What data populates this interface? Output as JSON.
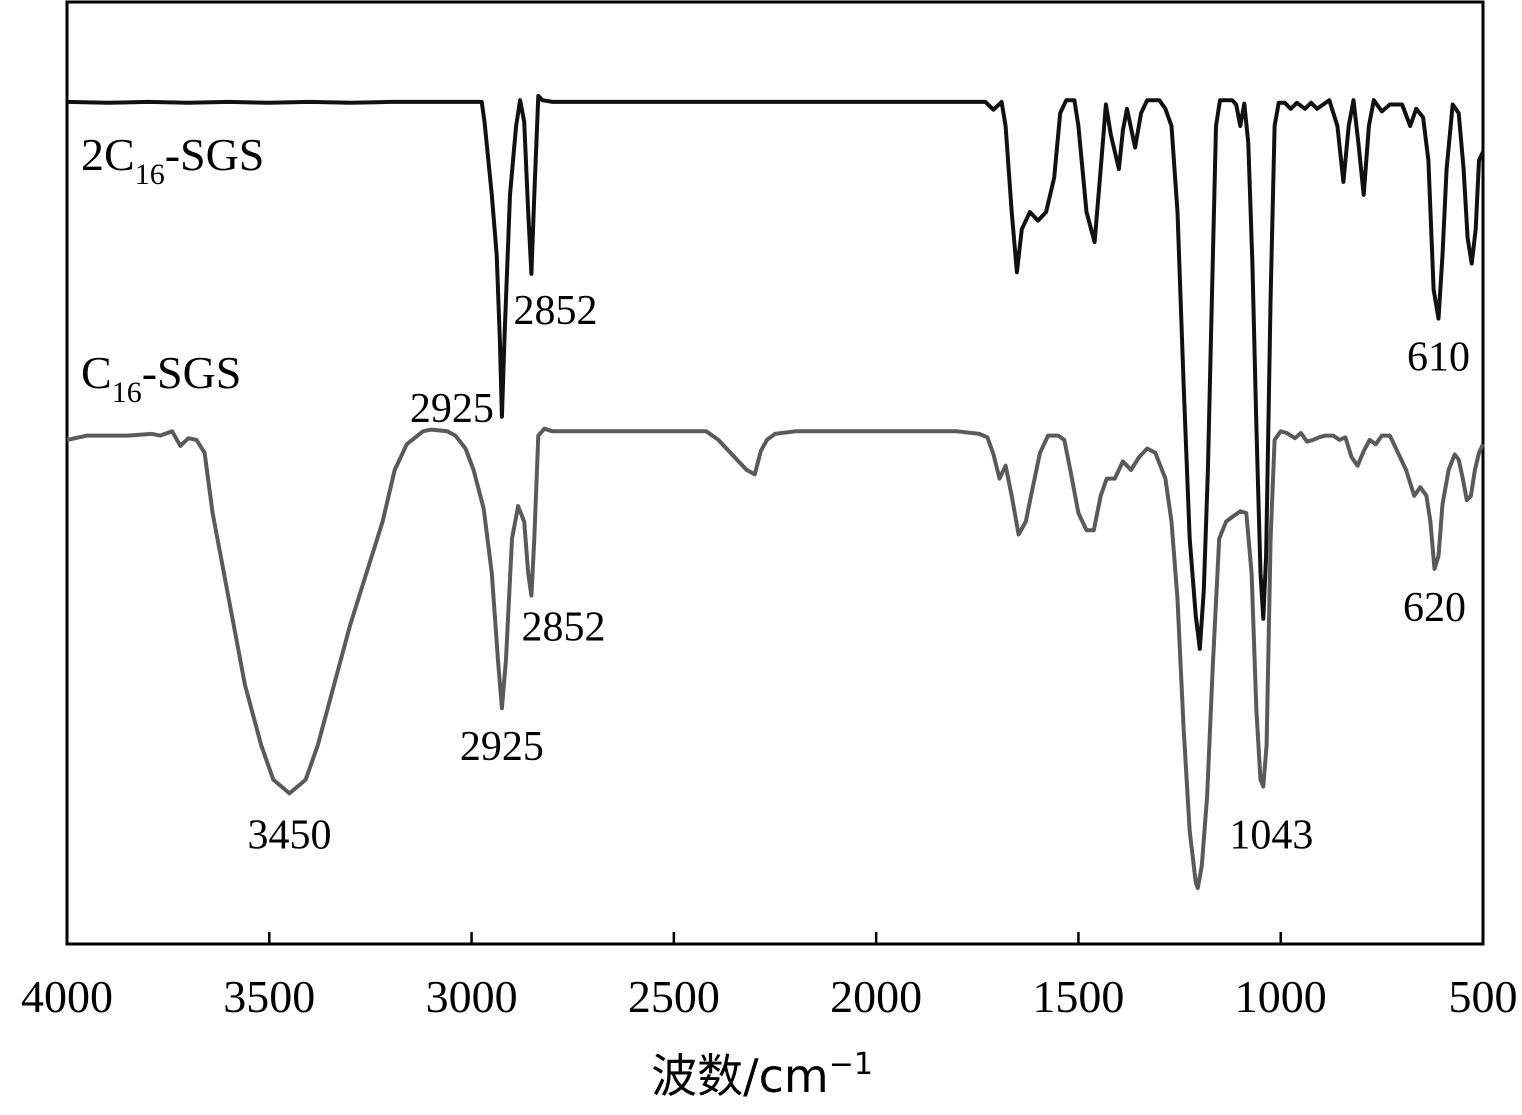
{
  "chart_data": {
    "type": "line",
    "title": "",
    "xlabel": "波数/cm",
    "xlabel_sup": "−1",
    "ylabel": "",
    "xlim": [
      4000,
      500
    ],
    "ylim": [
      0,
      1
    ],
    "x_reversed": true,
    "grid": false,
    "legend": "none",
    "xticks": [
      4000,
      3500,
      3000,
      2500,
      2000,
      1500,
      1000,
      500
    ],
    "series": [
      {
        "label_main": "2C",
        "label_sub": "16",
        "label_suffix": "-SGS",
        "color": "#111111",
        "points": [
          [
            4000,
            0.928
          ],
          [
            3900,
            0.927
          ],
          [
            3800,
            0.928
          ],
          [
            3700,
            0.927
          ],
          [
            3600,
            0.928
          ],
          [
            3500,
            0.927
          ],
          [
            3400,
            0.928
          ],
          [
            3300,
            0.927
          ],
          [
            3200,
            0.928
          ],
          [
            3100,
            0.928
          ],
          [
            3000,
            0.928
          ],
          [
            2975,
            0.928
          ],
          [
            2968,
            0.905
          ],
          [
            2950,
            0.82
          ],
          [
            2938,
            0.75
          ],
          [
            2930,
            0.65
          ],
          [
            2925,
            0.562
          ],
          [
            2918,
            0.66
          ],
          [
            2905,
            0.82
          ],
          [
            2890,
            0.9
          ],
          [
            2880,
            0.93
          ],
          [
            2870,
            0.905
          ],
          [
            2860,
            0.8
          ],
          [
            2852,
            0.728
          ],
          [
            2845,
            0.82
          ],
          [
            2835,
            0.935
          ],
          [
            2825,
            0.93
          ],
          [
            2800,
            0.928
          ],
          [
            2500,
            0.928
          ],
          [
            2000,
            0.928
          ],
          [
            1800,
            0.928
          ],
          [
            1730,
            0.928
          ],
          [
            1710,
            0.919
          ],
          [
            1690,
            0.928
          ],
          [
            1680,
            0.9
          ],
          [
            1665,
            0.8
          ],
          [
            1652,
            0.73
          ],
          [
            1640,
            0.78
          ],
          [
            1620,
            0.8
          ],
          [
            1600,
            0.79
          ],
          [
            1580,
            0.8
          ],
          [
            1560,
            0.84
          ],
          [
            1545,
            0.915
          ],
          [
            1530,
            0.93
          ],
          [
            1510,
            0.93
          ],
          [
            1500,
            0.9
          ],
          [
            1480,
            0.8
          ],
          [
            1460,
            0.765
          ],
          [
            1445,
            0.85
          ],
          [
            1432,
            0.925
          ],
          [
            1420,
            0.89
          ],
          [
            1400,
            0.85
          ],
          [
            1390,
            0.895
          ],
          [
            1380,
            0.92
          ],
          [
            1360,
            0.875
          ],
          [
            1345,
            0.915
          ],
          [
            1330,
            0.93
          ],
          [
            1300,
            0.93
          ],
          [
            1285,
            0.92
          ],
          [
            1270,
            0.9
          ],
          [
            1255,
            0.8
          ],
          [
            1240,
            0.6
          ],
          [
            1225,
            0.42
          ],
          [
            1210,
            0.33
          ],
          [
            1200,
            0.292
          ],
          [
            1190,
            0.36
          ],
          [
            1180,
            0.5
          ],
          [
            1170,
            0.7
          ],
          [
            1160,
            0.9
          ],
          [
            1150,
            0.93
          ],
          [
            1130,
            0.93
          ],
          [
            1120,
            0.93
          ],
          [
            1110,
            0.925
          ],
          [
            1100,
            0.9
          ],
          [
            1090,
            0.926
          ],
          [
            1080,
            0.88
          ],
          [
            1070,
            0.74
          ],
          [
            1060,
            0.55
          ],
          [
            1050,
            0.38
          ],
          [
            1043,
            0.327
          ],
          [
            1036,
            0.4
          ],
          [
            1025,
            0.7
          ],
          [
            1015,
            0.9
          ],
          [
            1005,
            0.927
          ],
          [
            990,
            0.927
          ],
          [
            975,
            0.92
          ],
          [
            960,
            0.927
          ],
          [
            940,
            0.92
          ],
          [
            925,
            0.927
          ],
          [
            910,
            0.92
          ],
          [
            880,
            0.93
          ],
          [
            860,
            0.9
          ],
          [
            845,
            0.835
          ],
          [
            832,
            0.9
          ],
          [
            820,
            0.93
          ],
          [
            808,
            0.88
          ],
          [
            795,
            0.82
          ],
          [
            782,
            0.9
          ],
          [
            770,
            0.93
          ],
          [
            750,
            0.917
          ],
          [
            730,
            0.925
          ],
          [
            700,
            0.925
          ],
          [
            680,
            0.9
          ],
          [
            665,
            0.92
          ],
          [
            648,
            0.91
          ],
          [
            635,
            0.86
          ],
          [
            622,
            0.71
          ],
          [
            610,
            0.676
          ],
          [
            600,
            0.75
          ],
          [
            590,
            0.85
          ],
          [
            575,
            0.925
          ],
          [
            560,
            0.915
          ],
          [
            548,
            0.85
          ],
          [
            538,
            0.77
          ],
          [
            528,
            0.74
          ],
          [
            518,
            0.78
          ],
          [
            510,
            0.86
          ],
          [
            500,
            0.87
          ]
        ]
      },
      {
        "label_main": "C",
        "label_sub": "16",
        "label_suffix": "-SGS",
        "color": "#5a5a5a",
        "points": [
          [
            4000,
            0.535
          ],
          [
            3950,
            0.54
          ],
          [
            3900,
            0.54
          ],
          [
            3850,
            0.54
          ],
          [
            3790,
            0.542
          ],
          [
            3770,
            0.54
          ],
          [
            3740,
            0.545
          ],
          [
            3720,
            0.528
          ],
          [
            3700,
            0.537
          ],
          [
            3680,
            0.535
          ],
          [
            3660,
            0.52
          ],
          [
            3640,
            0.45
          ],
          [
            3600,
            0.35
          ],
          [
            3560,
            0.25
          ],
          [
            3520,
            0.18
          ],
          [
            3490,
            0.14
          ],
          [
            3450,
            0.124
          ],
          [
            3410,
            0.14
          ],
          [
            3380,
            0.18
          ],
          [
            3340,
            0.25
          ],
          [
            3300,
            0.32
          ],
          [
            3260,
            0.38
          ],
          [
            3220,
            0.44
          ],
          [
            3190,
            0.5
          ],
          [
            3160,
            0.53
          ],
          [
            3120,
            0.545
          ],
          [
            3100,
            0.547
          ],
          [
            3060,
            0.545
          ],
          [
            3040,
            0.54
          ],
          [
            3015,
            0.525
          ],
          [
            2995,
            0.5
          ],
          [
            2970,
            0.455
          ],
          [
            2950,
            0.38
          ],
          [
            2935,
            0.28
          ],
          [
            2925,
            0.223
          ],
          [
            2915,
            0.28
          ],
          [
            2900,
            0.42
          ],
          [
            2885,
            0.458
          ],
          [
            2870,
            0.44
          ],
          [
            2860,
            0.38
          ],
          [
            2852,
            0.354
          ],
          [
            2845,
            0.42
          ],
          [
            2835,
            0.54
          ],
          [
            2820,
            0.548
          ],
          [
            2800,
            0.545
          ],
          [
            2600,
            0.545
          ],
          [
            2420,
            0.545
          ],
          [
            2390,
            0.535
          ],
          [
            2350,
            0.515
          ],
          [
            2320,
            0.5
          ],
          [
            2300,
            0.495
          ],
          [
            2285,
            0.522
          ],
          [
            2270,
            0.535
          ],
          [
            2250,
            0.542
          ],
          [
            2200,
            0.545
          ],
          [
            2000,
            0.545
          ],
          [
            1800,
            0.545
          ],
          [
            1745,
            0.542
          ],
          [
            1725,
            0.538
          ],
          [
            1710,
            0.518
          ],
          [
            1695,
            0.49
          ],
          [
            1680,
            0.505
          ],
          [
            1665,
            0.47
          ],
          [
            1648,
            0.425
          ],
          [
            1630,
            0.44
          ],
          [
            1615,
            0.475
          ],
          [
            1595,
            0.52
          ],
          [
            1575,
            0.54
          ],
          [
            1550,
            0.54
          ],
          [
            1535,
            0.535
          ],
          [
            1520,
            0.5
          ],
          [
            1500,
            0.45
          ],
          [
            1480,
            0.43
          ],
          [
            1462,
            0.43
          ],
          [
            1445,
            0.47
          ],
          [
            1430,
            0.49
          ],
          [
            1410,
            0.49
          ],
          [
            1390,
            0.51
          ],
          [
            1370,
            0.5
          ],
          [
            1350,
            0.515
          ],
          [
            1330,
            0.525
          ],
          [
            1310,
            0.52
          ],
          [
            1285,
            0.49
          ],
          [
            1270,
            0.44
          ],
          [
            1255,
            0.35
          ],
          [
            1240,
            0.2
          ],
          [
            1225,
            0.08
          ],
          [
            1210,
            0.02
          ],
          [
            1205,
            0.014
          ],
          [
            1195,
            0.04
          ],
          [
            1182,
            0.12
          ],
          [
            1168,
            0.27
          ],
          [
            1152,
            0.42
          ],
          [
            1135,
            0.44
          ],
          [
            1118,
            0.446
          ],
          [
            1100,
            0.452
          ],
          [
            1085,
            0.45
          ],
          [
            1072,
            0.38
          ],
          [
            1060,
            0.22
          ],
          [
            1050,
            0.14
          ],
          [
            1043,
            0.132
          ],
          [
            1035,
            0.18
          ],
          [
            1025,
            0.42
          ],
          [
            1015,
            0.535
          ],
          [
            1000,
            0.545
          ],
          [
            985,
            0.543
          ],
          [
            965,
            0.537
          ],
          [
            950,
            0.543
          ],
          [
            935,
            0.533
          ],
          [
            920,
            0.535
          ],
          [
            905,
            0.538
          ],
          [
            890,
            0.54
          ],
          [
            870,
            0.54
          ],
          [
            855,
            0.535
          ],
          [
            840,
            0.538
          ],
          [
            825,
            0.515
          ],
          [
            810,
            0.505
          ],
          [
            795,
            0.522
          ],
          [
            780,
            0.535
          ],
          [
            765,
            0.53
          ],
          [
            750,
            0.54
          ],
          [
            730,
            0.54
          ],
          [
            710,
            0.52
          ],
          [
            690,
            0.5
          ],
          [
            670,
            0.47
          ],
          [
            655,
            0.48
          ],
          [
            640,
            0.47
          ],
          [
            630,
            0.44
          ],
          [
            620,
            0.385
          ],
          [
            610,
            0.4
          ],
          [
            600,
            0.46
          ],
          [
            585,
            0.5
          ],
          [
            570,
            0.518
          ],
          [
            560,
            0.512
          ],
          [
            550,
            0.49
          ],
          [
            540,
            0.465
          ],
          [
            530,
            0.47
          ],
          [
            520,
            0.5
          ],
          [
            510,
            0.52
          ],
          [
            500,
            0.53
          ]
        ]
      }
    ],
    "annotations": [
      {
        "text": "2852",
        "x": 2852,
        "series": 0,
        "pos": "right-below"
      },
      {
        "text": "2925",
        "x": 2925,
        "series": 0,
        "pos": "left-below"
      },
      {
        "text": "610",
        "x": 610,
        "series": 0,
        "pos": "below"
      },
      {
        "text": "3450",
        "x": 3450,
        "series": 1,
        "pos": "below"
      },
      {
        "text": "2925",
        "x": 2925,
        "series": 1,
        "pos": "below"
      },
      {
        "text": "2852",
        "x": 2852,
        "series": 1,
        "pos": "right-below"
      },
      {
        "text": "1043",
        "x": 1043,
        "series": 1,
        "pos": "right-below"
      },
      {
        "text": "620",
        "x": 620,
        "series": 1,
        "pos": "below"
      }
    ]
  }
}
